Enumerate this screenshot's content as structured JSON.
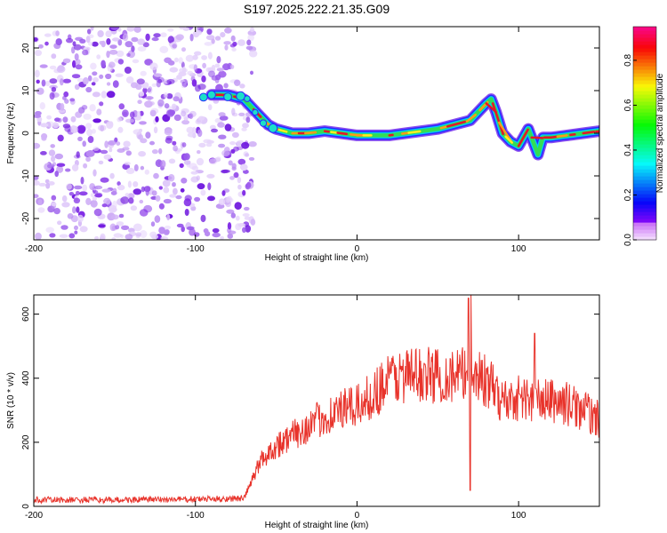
{
  "title": "S197.2025.222.21.35.G09",
  "colors": {
    "snr_line": "#e8332b",
    "frame": "#000000",
    "ridge_core": "#e4152a",
    "noise": "#8a2be2"
  },
  "chart_data": [
    {
      "type": "heatmap",
      "name": "spectrogram",
      "xlabel": "Height of straight line (km)",
      "ylabel": "Frequency (Hz)",
      "xlim": [
        -200,
        150
      ],
      "ylim": [
        -25,
        25
      ],
      "xticks": [
        -200,
        -100,
        0,
        100
      ],
      "yticks": [
        -20,
        -10,
        0,
        10,
        20
      ],
      "noise_region_x": [
        -200,
        -70
      ],
      "ridge": {
        "x": [
          -90,
          -80,
          -70,
          -65,
          -60,
          -55,
          -50,
          -45,
          -40,
          -30,
          -20,
          -10,
          0,
          10,
          20,
          30,
          40,
          50,
          60,
          70,
          75,
          80,
          83,
          86,
          90,
          95,
          100,
          103,
          106,
          109,
          112,
          115,
          120,
          130,
          140,
          150
        ],
        "y": [
          9,
          9,
          8,
          6,
          4,
          2,
          1,
          0.5,
          0,
          0,
          0.5,
          0,
          -0.5,
          -0.5,
          -0.5,
          0,
          0.5,
          1,
          2,
          3,
          5,
          7,
          8,
          5,
          0,
          -2,
          -3,
          -1,
          1,
          -2,
          -5,
          -1,
          -1,
          -0.5,
          0,
          0.5
        ]
      },
      "colorbar": {
        "label": "Normalized spectral amplitude",
        "min": 0,
        "max": 0.95,
        "ticks": [
          0.0,
          0.2,
          0.4,
          0.6,
          0.8
        ],
        "tick_labels": [
          "0.0",
          "0.2",
          "0.4",
          "0.6",
          "0.8"
        ]
      }
    },
    {
      "type": "line",
      "name": "snr",
      "xlabel": "Height of straight line (km)",
      "ylabel": "SNR (10 * v/v)",
      "xlim": [
        -200,
        150
      ],
      "ylim": [
        0,
        660
      ],
      "xticks": [
        -200,
        -100,
        0,
        100
      ],
      "yticks": [
        0,
        200,
        400,
        600
      ],
      "series": [
        {
          "name": "SNR",
          "envelope_x": [
            -200,
            -150,
            -100,
            -70,
            -65,
            -60,
            -50,
            -40,
            -30,
            -20,
            -10,
            0,
            10,
            20,
            30,
            40,
            50,
            60,
            65,
            70,
            75,
            80,
            85,
            90,
            100,
            110,
            120,
            130,
            140,
            150
          ],
          "envelope_y": [
            20,
            20,
            22,
            25,
            80,
            140,
            190,
            220,
            250,
            280,
            300,
            310,
            350,
            400,
            410,
            410,
            410,
            405,
            410,
            400,
            410,
            390,
            360,
            330,
            340,
            330,
            330,
            320,
            300,
            270
          ],
          "spikes_x": [
            69,
            70,
            70.5,
            110
          ],
          "spikes_y": [
            650,
            50,
            660,
            540
          ]
        }
      ]
    }
  ]
}
